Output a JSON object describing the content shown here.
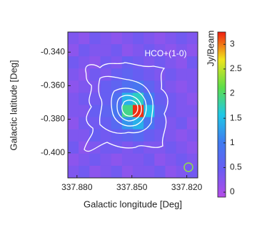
{
  "chart_data": {
    "type": "heatmap",
    "annotation": "HCO+(1-0)",
    "xlabel": "Galactic longitude [Deg]",
    "ylabel": "Galactic latitude [Deg]",
    "colorbar_label": "Jy/Beam",
    "xlim": [
      337.885,
      337.814
    ],
    "ylim": [
      -0.415,
      -0.328
    ],
    "xticks": [
      {
        "value": 337.88,
        "label": "337.880"
      },
      {
        "value": 337.85,
        "label": "337.850"
      },
      {
        "value": 337.82,
        "label": "337.820"
      }
    ],
    "yticks": [
      {
        "value": -0.34,
        "label": "-0.340"
      },
      {
        "value": -0.36,
        "label": "-0.360"
      },
      {
        "value": -0.38,
        "label": "-0.380"
      },
      {
        "value": -0.4,
        "label": "-0.400"
      }
    ],
    "zlim": [
      -0.1,
      3.25
    ],
    "zticks": [
      0,
      0.5,
      1,
      1.5,
      2,
      2.5,
      3
    ],
    "colormap": [
      "#b44ce8",
      "#6a5cf2",
      "#3f7cf0",
      "#1fc8e6",
      "#5ede48",
      "#f0e41c",
      "#f01c10"
    ],
    "z": [
      [
        0.3,
        0.2,
        0.4,
        0.3,
        0.2,
        0.3,
        0.4,
        0.3,
        0.2,
        0.3,
        0.4,
        0.3
      ],
      [
        0.2,
        0.4,
        0.3,
        0.3,
        0.4,
        0.2,
        0.3,
        0.4,
        0.3,
        0.2,
        0.3,
        0.2
      ],
      [
        0.4,
        0.3,
        0.2,
        0.4,
        0.3,
        0.5,
        0.4,
        0.3,
        0.4,
        0.3,
        0.2,
        0.4
      ],
      [
        0.3,
        0.2,
        0.4,
        0.3,
        0.5,
        0.6,
        0.5,
        0.4,
        0.3,
        0.4,
        0.3,
        0.3
      ],
      [
        0.2,
        0.3,
        0.3,
        0.5,
        0.6,
        0.8,
        0.9,
        0.6,
        0.4,
        0.3,
        0.2,
        0.3
      ],
      [
        0.3,
        0.4,
        0.4,
        0.5,
        0.8,
        1.4,
        1.7,
        1.0,
        0.5,
        0.4,
        0.3,
        0.2
      ],
      [
        0.3,
        0.3,
        0.5,
        0.6,
        0.9,
        1.9,
        3.2,
        1.5,
        0.6,
        0.4,
        0.3,
        0.3
      ],
      [
        0.2,
        0.4,
        0.4,
        0.5,
        0.7,
        1.2,
        1.4,
        0.9,
        0.5,
        0.3,
        0.4,
        0.2
      ],
      [
        0.3,
        0.3,
        0.5,
        0.4,
        0.5,
        0.6,
        0.7,
        0.5,
        0.4,
        0.3,
        0.2,
        0.3
      ],
      [
        0.4,
        0.2,
        0.3,
        0.4,
        0.4,
        0.3,
        0.4,
        0.3,
        0.3,
        0.4,
        0.3,
        0.2
      ],
      [
        0.2,
        0.3,
        0.4,
        0.3,
        0.2,
        0.3,
        0.3,
        0.4,
        0.2,
        0.3,
        0.4,
        0.3
      ],
      [
        0.3,
        0.4,
        0.2,
        0.3,
        0.4,
        0.2,
        0.3,
        0.3,
        0.4,
        0.2,
        0.3,
        0.4
      ]
    ]
  }
}
